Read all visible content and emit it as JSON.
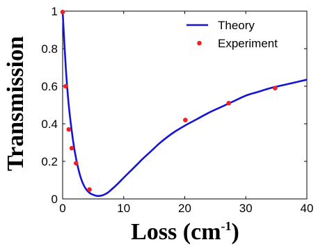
{
  "chart_data": {
    "type": "line",
    "xlabel": "Loss (cm",
    "xlabel_sup": "-1",
    "xlabel_close": ")",
    "ylabel": "Transmission",
    "xlim": [
      0,
      40
    ],
    "ylim": [
      0,
      1
    ],
    "xticks": [
      "0",
      "10",
      "20",
      "30",
      "40"
    ],
    "yticks": [
      "0",
      "0.2",
      "0.4",
      "0.6",
      "0.8",
      "1"
    ],
    "grid": false,
    "legend_position": "top-right",
    "series": [
      {
        "name": "Theory",
        "style": "line",
        "color": "#1414d2",
        "x": [
          0,
          0.3,
          0.6,
          1,
          1.5,
          2,
          2.5,
          3,
          3.5,
          4,
          4.5,
          5,
          5.5,
          6,
          6.5,
          7,
          7.5,
          8,
          9,
          10,
          11,
          12,
          13,
          14,
          15,
          16,
          18,
          20,
          22,
          24,
          26,
          28,
          30,
          32,
          34,
          36,
          38,
          40
        ],
        "y": [
          1.0,
          0.82,
          0.66,
          0.5,
          0.36,
          0.25,
          0.17,
          0.11,
          0.07,
          0.045,
          0.03,
          0.022,
          0.017,
          0.016,
          0.019,
          0.026,
          0.036,
          0.05,
          0.08,
          0.113,
          0.145,
          0.177,
          0.21,
          0.24,
          0.27,
          0.3,
          0.35,
          0.39,
          0.425,
          0.46,
          0.49,
          0.52,
          0.55,
          0.57,
          0.59,
          0.605,
          0.62,
          0.635
        ]
      },
      {
        "name": "Experiment",
        "style": "scatter",
        "color": "#ee2222",
        "x": [
          0,
          0.5,
          1.0,
          1.5,
          2.2,
          4.4,
          20.1,
          27.2,
          34.8
        ],
        "y": [
          0.995,
          0.6,
          0.37,
          0.27,
          0.19,
          0.05,
          0.42,
          0.51,
          0.59
        ]
      }
    ]
  }
}
